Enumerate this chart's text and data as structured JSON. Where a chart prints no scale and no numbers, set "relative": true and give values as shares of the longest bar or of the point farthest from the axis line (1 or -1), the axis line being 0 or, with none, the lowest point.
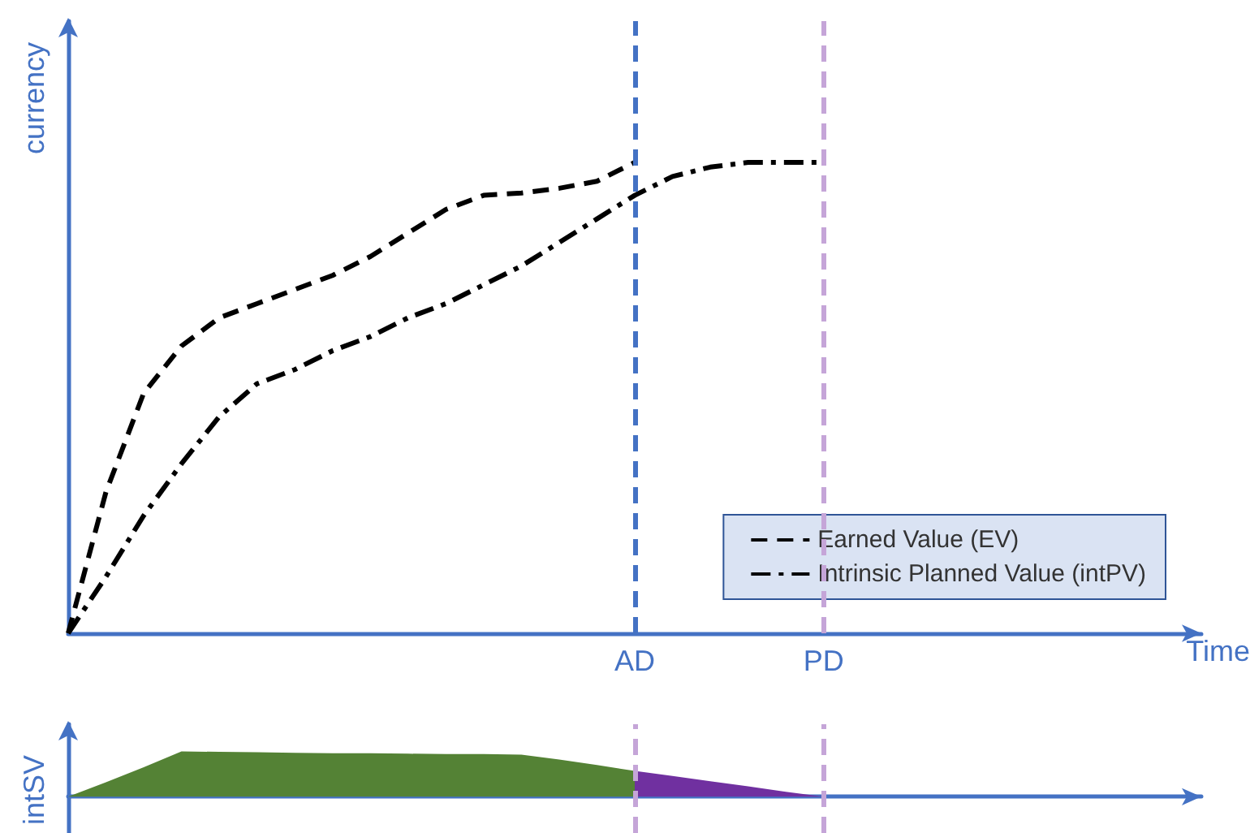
{
  "chart_data": [
    {
      "type": "line",
      "ylabel": "currency",
      "xlabel": "Time",
      "relative": true,
      "categories": [
        null,
        null,
        null,
        null,
        null,
        null,
        null,
        null,
        null,
        null,
        null,
        null,
        null,
        null,
        null,
        "AD",
        null,
        null,
        null,
        null,
        "PD",
        null,
        null,
        null,
        null,
        null,
        null,
        null,
        null,
        null,
        null
      ],
      "grid": false,
      "legend": "bottom right",
      "marker": "none",
      "series": [
        {
          "name": "Earned Value (EV)",
          "color": "#000000",
          "line_style": "dashed",
          "values": [
            0,
            0.3,
            0.51,
            0.61,
            0.67,
            0.7,
            0.73,
            0.76,
            0.8,
            0.85,
            0.9,
            0.93,
            0.935,
            0.945,
            0.96,
            1.0,
            null,
            null,
            null,
            null,
            null,
            null,
            null,
            null,
            null,
            null,
            null,
            null,
            null,
            null,
            null
          ]
        },
        {
          "name": "Intrinsic Planned Value (intPV)",
          "color": "#000000",
          "line_style": "dashdot",
          "values": [
            0,
            0.12,
            0.25,
            0.36,
            0.46,
            0.53,
            0.56,
            0.6,
            0.63,
            0.67,
            0.7,
            0.74,
            0.78,
            0.83,
            0.88,
            0.93,
            0.97,
            0.99,
            1.0,
            1.0,
            1.0,
            null,
            null,
            null,
            null,
            null,
            null,
            null,
            null,
            null,
            null
          ]
        }
      ],
      "ref_lines": [
        {
          "axis": "x",
          "value": "AD",
          "color": "#4472c4",
          "line_style": "dashed"
        },
        {
          "axis": "x",
          "value": "PD",
          "color": "#c5a5d8",
          "line_style": "dashed"
        }
      ]
    },
    {
      "type": "area",
      "ylabel": "intSV",
      "relative": true,
      "categories": [
        null,
        null,
        null,
        null,
        null,
        null,
        null,
        null,
        null,
        null,
        null,
        null,
        null,
        null,
        null,
        "AD",
        null,
        null,
        null,
        null,
        "PD",
        null,
        null,
        null,
        null,
        null,
        null,
        null,
        null,
        null,
        null
      ],
      "tick_labels": false,
      "grid": false,
      "legend": false,
      "series": [
        {
          "color": "#548235",
          "values": [
            0,
            0.32,
            0.65,
            1.0,
            0.99,
            0.98,
            0.97,
            0.96,
            0.96,
            0.95,
            0.94,
            0.94,
            0.93,
            0.82,
            0.7,
            0.57,
            null,
            null,
            null,
            null,
            null,
            null,
            null,
            null,
            null,
            null,
            null,
            null,
            null,
            null,
            null
          ]
        },
        {
          "color": "#7030a0",
          "values": [
            null,
            null,
            null,
            null,
            null,
            null,
            null,
            null,
            null,
            null,
            null,
            null,
            null,
            null,
            null,
            0.57,
            0.46,
            0.34,
            0.23,
            0.11,
            0,
            null,
            null,
            null,
            null,
            null,
            null,
            null,
            null,
            null,
            null
          ]
        }
      ],
      "ref_lines": [
        {
          "axis": "x",
          "value": "AD",
          "color": "#c5a5d8",
          "line_style": "dashed"
        },
        {
          "axis": "x",
          "value": "PD",
          "color": "#c5a5d8",
          "line_style": "dashed"
        }
      ]
    }
  ]
}
